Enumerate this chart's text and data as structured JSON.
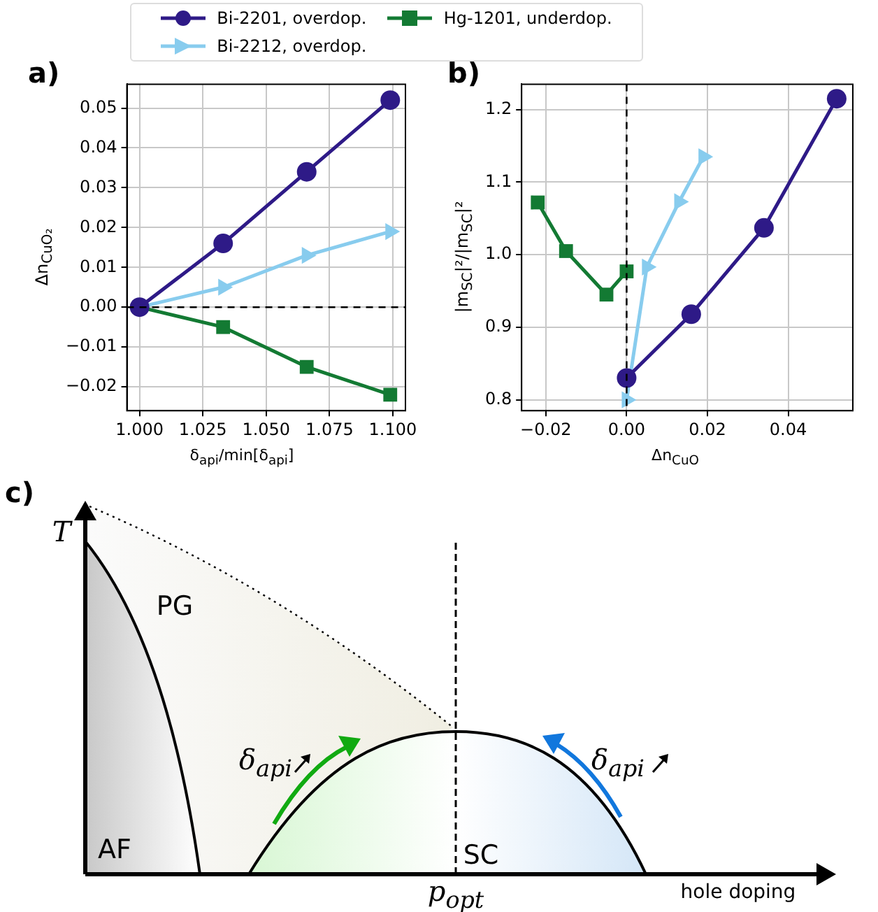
{
  "chart_data": [
    {
      "type": "line",
      "annotations": [
        "a)"
      ],
      "xlabel": "δ$_{api}$/min[δ$_{api}$]",
      "ylabel": "Δn$_{CuO₂}$",
      "x": [
        1.0,
        1.033,
        1.066,
        1.099
      ],
      "series": [
        {
          "name": "Bi-2201, overdop.",
          "color": "#2e1a87",
          "marker": "circle",
          "values": [
            0,
            0.016,
            0.034,
            0.052
          ]
        },
        {
          "name": "Bi-2212, overdop.",
          "color": "#88ccee",
          "marker": "triangle",
          "values": [
            0,
            0.005,
            0.013,
            0.019
          ]
        },
        {
          "name": "Hg-1201, underdop.",
          "color": "#137a33",
          "marker": "square",
          "values": [
            0,
            -0.005,
            -0.015,
            -0.022
          ]
        }
      ],
      "xlim": [
        0.995,
        1.105
      ],
      "ylim": [
        -0.026,
        0.056
      ],
      "xticks": [
        {
          "value": 1.0,
          "label": "1.000"
        },
        {
          "value": 1.025,
          "label": "1.025"
        },
        {
          "value": 1.05,
          "label": "1.050"
        },
        {
          "value": 1.075,
          "label": "1.075"
        },
        {
          "value": 1.1,
          "label": "1.100"
        }
      ],
      "yticks": [
        {
          "value": -0.02,
          "label": "−0.02"
        },
        {
          "value": -0.01,
          "label": "−0.01"
        },
        {
          "value": 0,
          "label": "0.00"
        },
        {
          "value": 0.01,
          "label": "0.01"
        },
        {
          "value": 0.02,
          "label": "0.02"
        },
        {
          "value": 0.03,
          "label": "0.03"
        },
        {
          "value": 0.04,
          "label": "0.04"
        },
        {
          "value": 0.05,
          "label": "0.05"
        }
      ],
      "ref_lines": [
        {
          "axis": "y",
          "value": 0,
          "color": "#000000",
          "line_style": "dashed"
        }
      ],
      "grid": true,
      "legend": "top",
      "line_style": "solid"
    },
    {
      "type": "line",
      "annotations": [
        "b)"
      ],
      "xlabel": "Δn$_{CuO}$",
      "ylabel": "|m$_{SC}$|²/|m$_{SC}$|²",
      "series": [
        {
          "color": "#2e1a87",
          "marker": "circle",
          "x": [
            0,
            0.016,
            0.034,
            0.052
          ],
          "values": [
            0.83,
            0.918,
            1.037,
            1.215
          ]
        },
        {
          "color": "#88ccee",
          "marker": "triangle",
          "x": [
            0,
            0.005,
            0.013,
            0.019
          ],
          "values": [
            0.8,
            0.983,
            1.073,
            1.135
          ]
        },
        {
          "color": "#137a33",
          "marker": "square",
          "x": [
            -0.022,
            -0.015,
            -0.005,
            0
          ],
          "values": [
            1.072,
            1.005,
            0.945,
            0.977
          ]
        }
      ],
      "xlim": [
        -0.026,
        0.056
      ],
      "ylim": [
        0.785,
        1.235
      ],
      "xticks": [
        {
          "value": -0.02,
          "label": "−0.02"
        },
        {
          "value": 0,
          "label": "0.00"
        },
        {
          "value": 0.02,
          "label": "0.02"
        },
        {
          "value": 0.04,
          "label": "0.04"
        }
      ],
      "yticks": [
        {
          "value": 0.8,
          "label": "0.8"
        },
        {
          "value": 0.9,
          "label": "0.9"
        },
        {
          "value": 1.0,
          "label": "1.0"
        },
        {
          "value": 1.1,
          "label": "1.1"
        },
        {
          "value": 1.2,
          "label": "1.2"
        }
      ],
      "ref_lines": [
        {
          "axis": "x",
          "value": 0,
          "color": "#000000",
          "line_style": "dashed"
        }
      ],
      "grid": true,
      "line_style": "solid"
    },
    {
      "type": "other",
      "annotations": [
        "c)",
        "T",
        "PG",
        "AF",
        "SC",
        "p$_{opt}$",
        "hole doping",
        "δ$_{api}$",
        "δ$_{api}$"
      ]
    }
  ]
}
